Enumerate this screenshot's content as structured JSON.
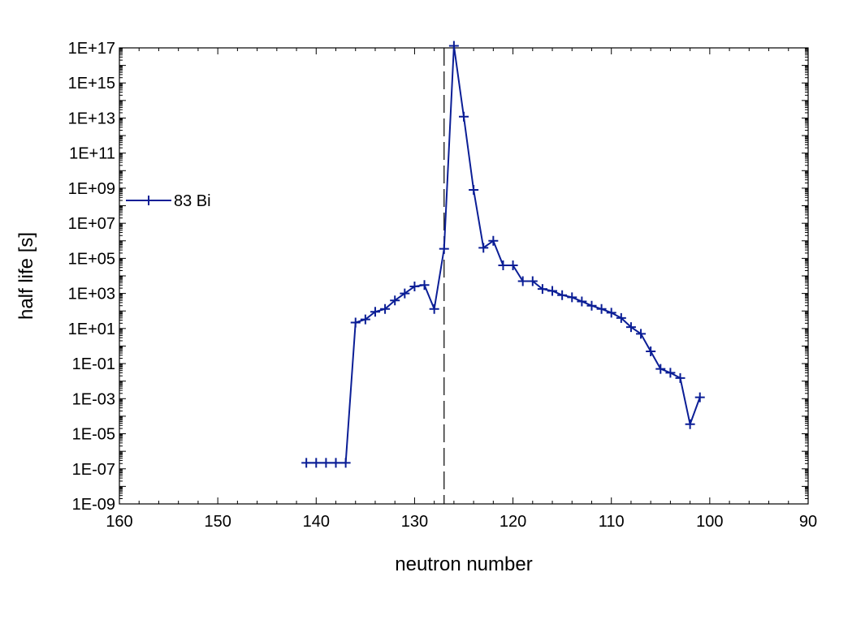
{
  "chart_data": {
    "type": "line",
    "xlabel": "neutron number",
    "ylabel": "half life [s]",
    "x_reversed": true,
    "xlim": [
      160,
      90
    ],
    "x_ticks": [
      160,
      150,
      140,
      130,
      120,
      110,
      100,
      90
    ],
    "y_scale": "log",
    "ylim_exp": [
      -9,
      17
    ],
    "y_tick_labels": [
      "1E-09",
      "1E-07",
      "1E-05",
      "1E-03",
      "1E-01",
      "1E+01",
      "1E+03",
      "1E+05",
      "1E+07",
      "1E+09",
      "1E+11",
      "1E+13",
      "1E+15",
      "1E+17"
    ],
    "legend": {
      "label": "83 Bi",
      "placement": "left-middle"
    },
    "reference_line": {
      "x": 127,
      "style": "dashed"
    },
    "colors": {
      "series": "#0b1e96",
      "axis": "#000000",
      "reference_line": "#000000"
    },
    "series": [
      {
        "name": "83 Bi",
        "marker": "plus",
        "x": [
          141,
          140,
          139,
          138,
          137,
          136,
          135,
          134,
          133,
          132,
          131,
          130,
          129,
          128,
          127,
          126,
          125,
          124,
          123,
          122,
          121,
          120,
          119,
          118,
          117,
          116,
          115,
          114,
          113,
          112,
          111,
          110,
          109,
          108,
          107,
          106,
          105,
          104,
          103,
          102,
          101
        ],
        "y": [
          2.2e-07,
          2.2e-07,
          2.2e-07,
          2.2e-07,
          2.2e-07,
          22,
          33,
          90,
          130,
          400,
          1000,
          2500,
          3000,
          130,
          350000,
          1.3e+17,
          12000000000000.0,
          800000000.0,
          400000,
          1000000.0,
          40000,
          40000,
          5000,
          5000,
          1800,
          1400,
          800,
          600,
          350,
          200,
          130,
          80,
          40,
          12,
          5,
          0.5,
          0.05,
          0.03,
          0.015,
          3.5e-05,
          0.0012
        ]
      }
    ]
  }
}
